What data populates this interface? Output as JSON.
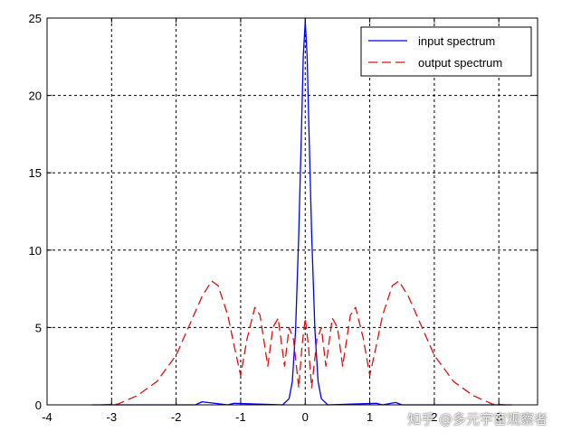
{
  "chart_data": {
    "type": "line",
    "xlim": [
      -4,
      3.6
    ],
    "ylim": [
      0,
      25
    ],
    "xticks": [
      -4,
      -3,
      -2,
      -1,
      0,
      1,
      2,
      3
    ],
    "yticks": [
      0,
      5,
      10,
      15,
      20,
      25
    ],
    "grid": true,
    "legend_position": "top-right",
    "series": [
      {
        "name": "input spectrum",
        "color": "#0000ff",
        "style": "solid",
        "x": [
          -3.3,
          -1.7,
          -1.6,
          -1.2,
          -1.1,
          -0.35,
          -0.25,
          -0.2,
          -0.15,
          -0.1,
          -0.06,
          -0.03,
          0,
          0.03,
          0.06,
          0.1,
          0.15,
          0.2,
          0.25,
          0.35,
          1.1,
          1.2,
          1.4,
          1.5,
          3.2
        ],
        "y": [
          0,
          0,
          0.2,
          0,
          0.1,
          0,
          0.4,
          1.5,
          4.8,
          11,
          17.5,
          22.5,
          24.8,
          22.5,
          17.5,
          11,
          4.8,
          1.5,
          0.4,
          0,
          0.1,
          0,
          0.15,
          0,
          0
        ]
      },
      {
        "name": "output spectrum",
        "color": "#dd1111",
        "style": "dashed",
        "x": [
          -3.15,
          -2.9,
          -2.6,
          -2.3,
          -2.0,
          -1.8,
          -1.6,
          -1.45,
          -1.35,
          -1.2,
          -1.1,
          -1.0,
          -0.9,
          -0.78,
          -0.7,
          -0.58,
          -0.5,
          -0.42,
          -0.32,
          -0.25,
          -0.18,
          -0.1,
          -0.05,
          0,
          0.05,
          0.1,
          0.18,
          0.25,
          0.32,
          0.42,
          0.5,
          0.58,
          0.7,
          0.78,
          0.9,
          1.0,
          1.1,
          1.2,
          1.35,
          1.45,
          1.6,
          1.8,
          2.0,
          2.3,
          2.6,
          2.9,
          3.1
        ],
        "y": [
          0,
          0.05,
          0.6,
          1.5,
          3.2,
          5.1,
          7.0,
          8.0,
          7.7,
          5.8,
          3.8,
          1.9,
          4.3,
          6.3,
          5.8,
          2.5,
          5.0,
          5.6,
          2.5,
          5.0,
          4.2,
          1.1,
          3.8,
          5.6,
          3.8,
          1.1,
          4.2,
          5.0,
          2.5,
          5.6,
          5.0,
          2.5,
          5.8,
          6.3,
          4.3,
          1.9,
          3.8,
          5.8,
          7.7,
          8.0,
          7.0,
          5.1,
          3.2,
          1.5,
          0.6,
          0.05,
          0
        ]
      }
    ]
  },
  "watermark": "知乎 @多元宇宙观察者"
}
